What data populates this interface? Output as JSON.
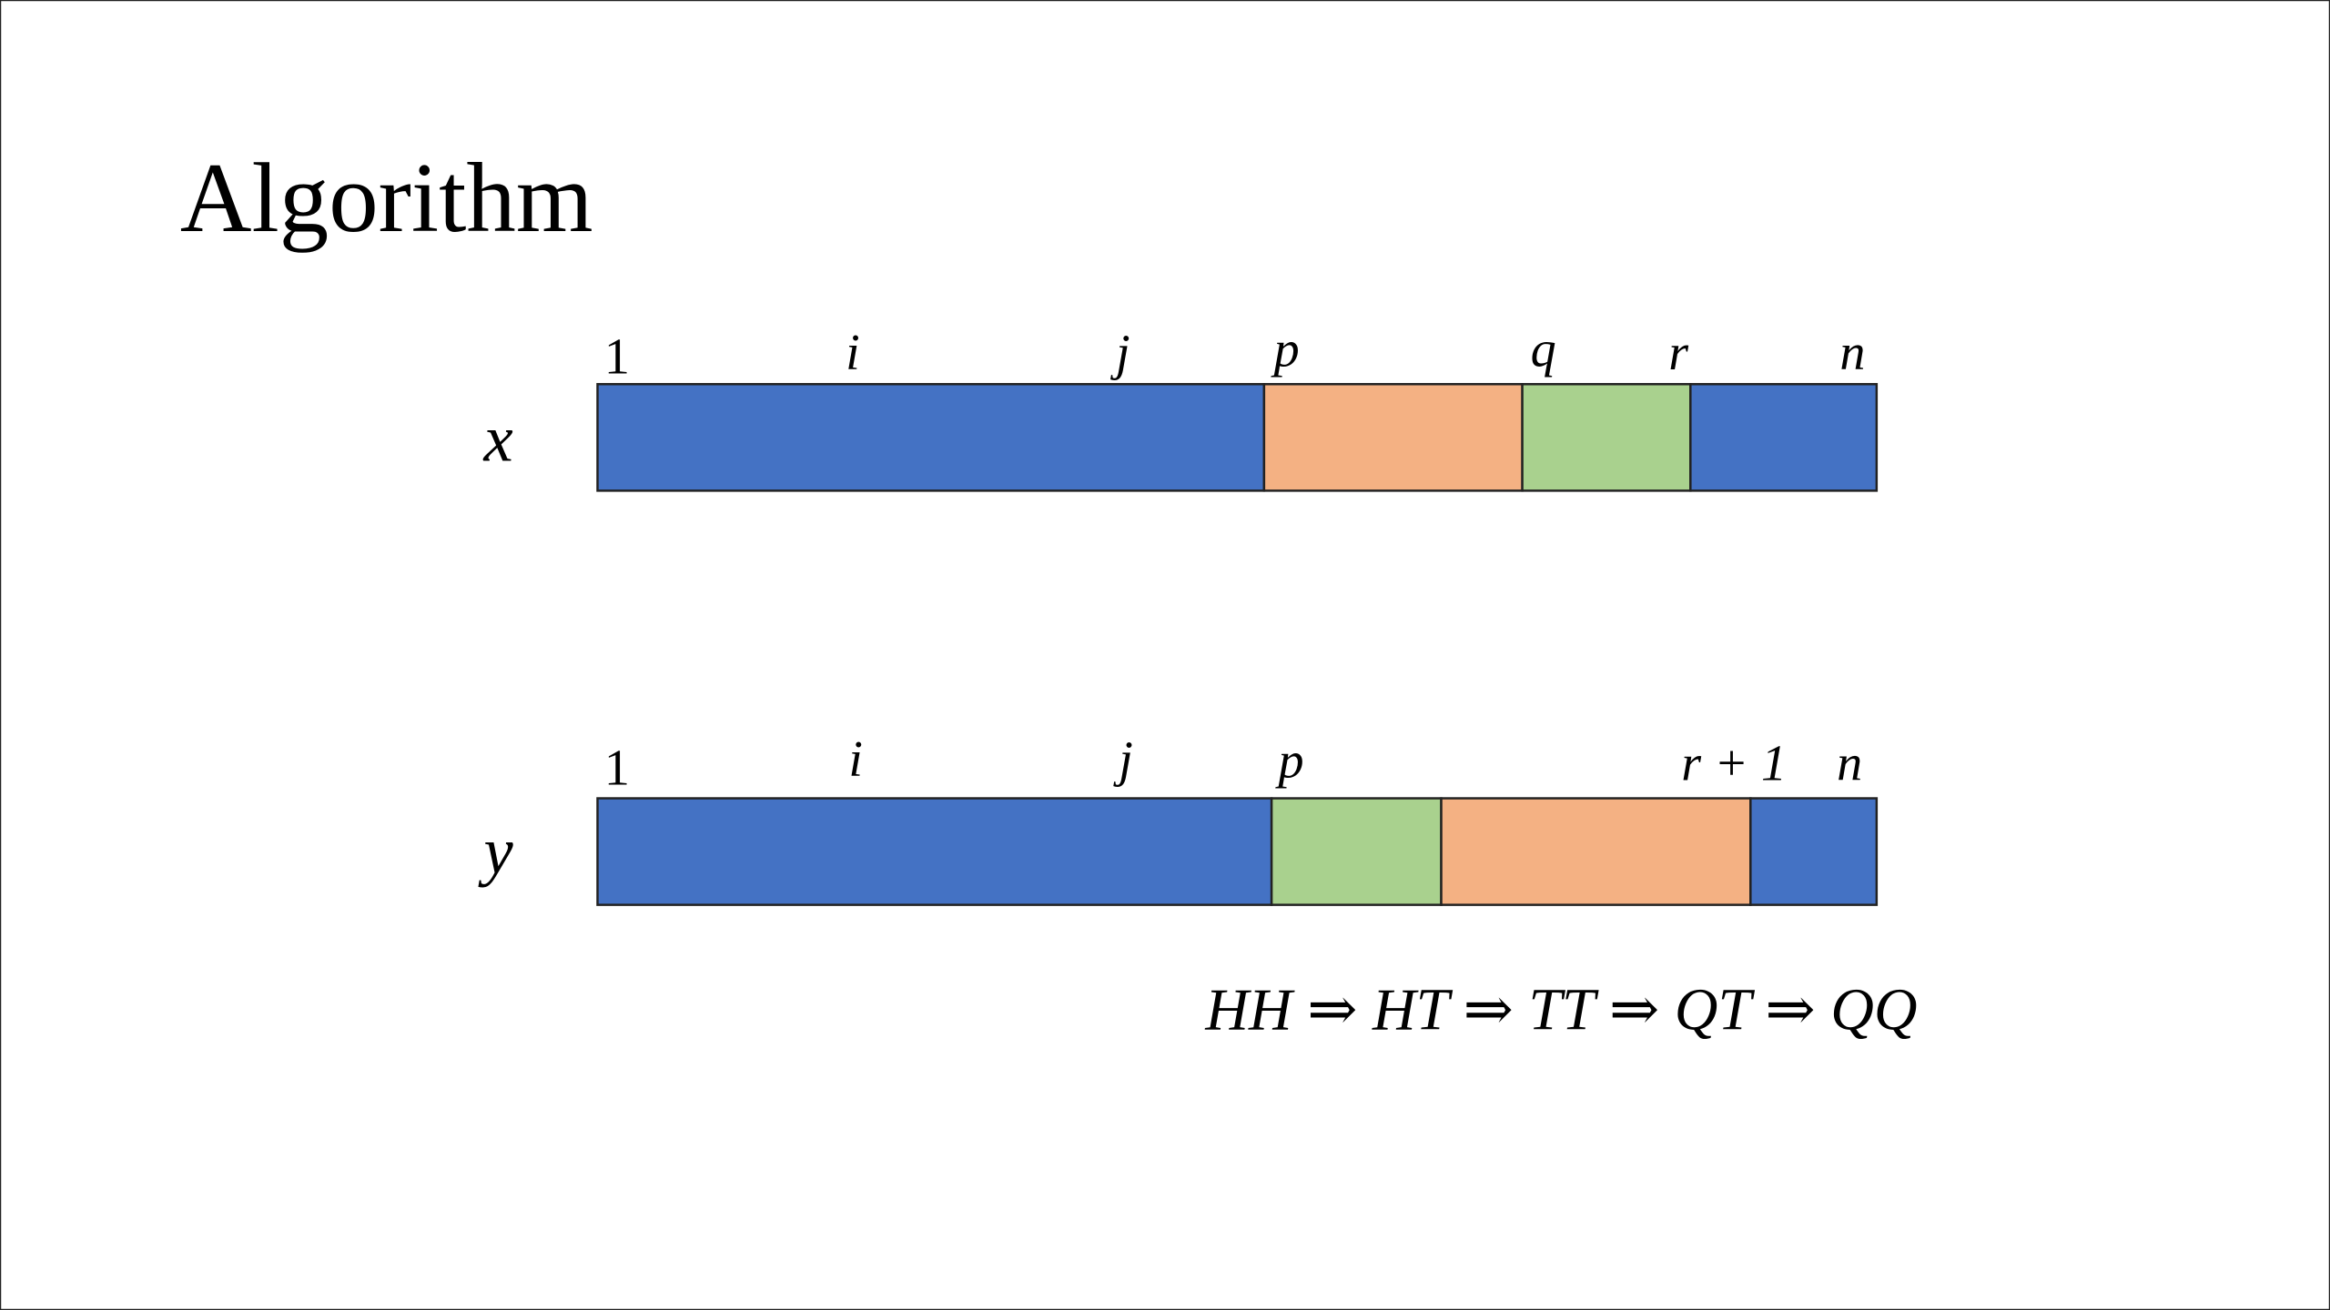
{
  "title": "Algorithm",
  "rows": [
    {
      "label": "x",
      "indices": [
        "1",
        "i",
        "j",
        "p",
        "q",
        "r",
        "n"
      ]
    },
    {
      "label": "y",
      "indices": [
        "1",
        "i",
        "j",
        "p",
        "r + 1",
        "n"
      ]
    }
  ],
  "formula": "HH ⇒ HT ⇒ TT ⇒ QT ⇒ QQ"
}
